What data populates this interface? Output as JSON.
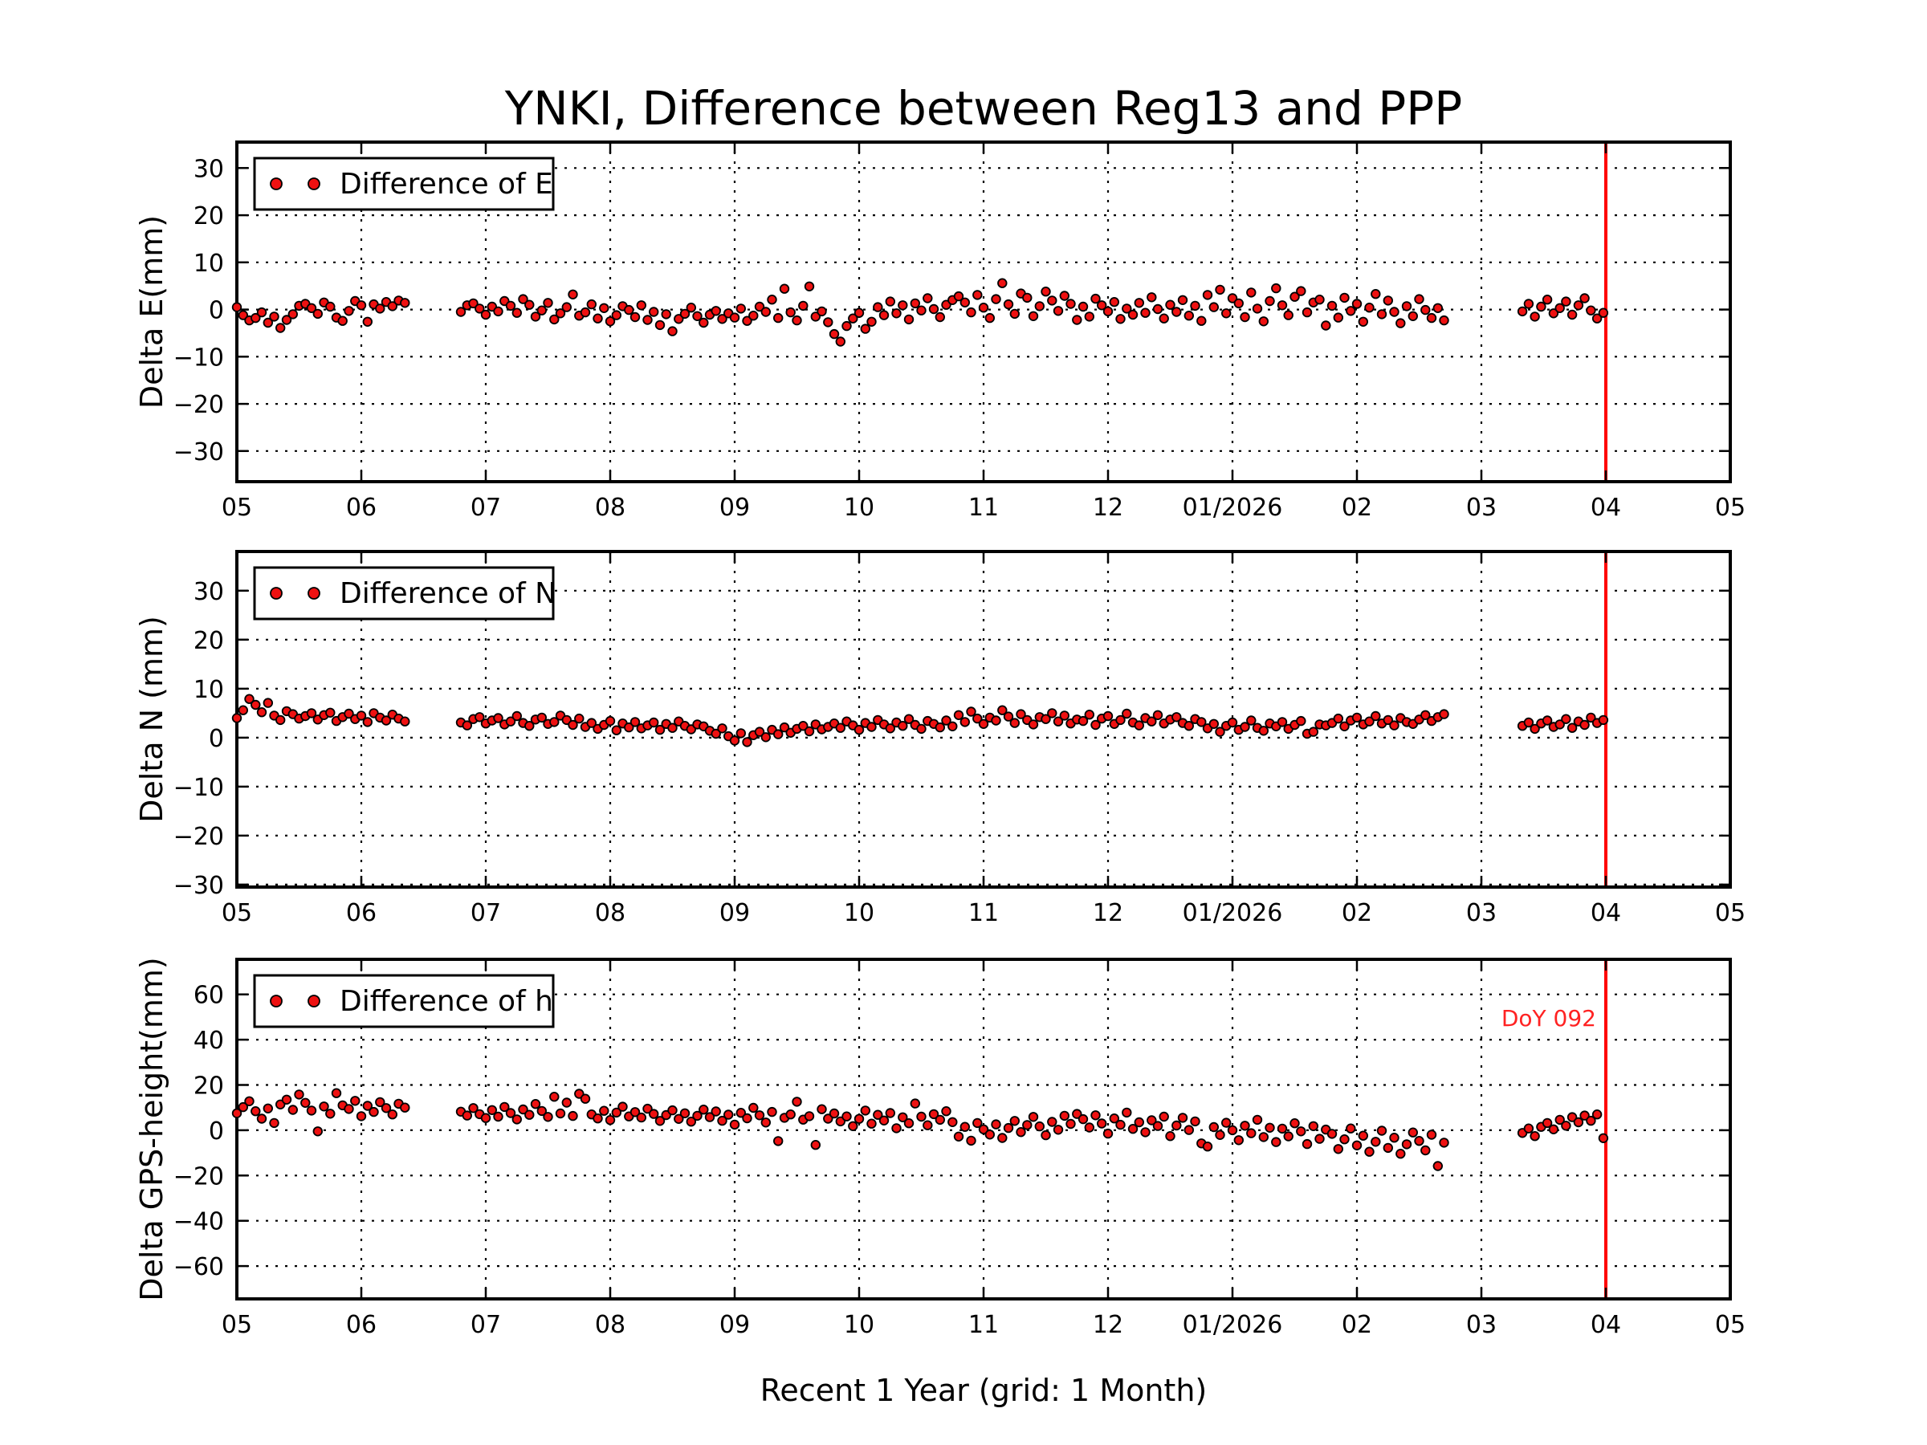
{
  "title": "YNKI, Difference between Reg13 and PPP",
  "xlabel": "Recent 1 Year (grid: 1 Month)",
  "x_tick_labels": [
    "05",
    "06",
    "07",
    "08",
    "09",
    "10",
    "11",
    "12",
    "01/2026",
    "02",
    "03",
    "04",
    "05"
  ],
  "colors": {
    "background": "#ffffff",
    "text": "#000000",
    "grid": "#000000",
    "marker_fill": "#ee1111",
    "marker_edge": "#000000"
  },
  "vline": {
    "x_month": 16,
    "color": "#ff0000"
  },
  "annotation": {
    "text": "DoY 092",
    "subplot": "h",
    "x_month": 16,
    "y_value": 46,
    "color": "#ff2222"
  },
  "chart_data": [
    {
      "type": "scatter",
      "id": "e",
      "ylabel": "Delta E(mm)",
      "legend": "Difference of E",
      "legend_position": "upper left",
      "grid": true,
      "xlim": [
        5,
        17
      ],
      "x_unit": "calendar month, 5 = 2025-05 ... 17 = 2026-05",
      "ylim": [
        -36.5,
        35.5
      ],
      "yticks": [
        30,
        20,
        10,
        0,
        -10,
        -20,
        -30
      ],
      "yticklabels": [
        "30",
        "20",
        "10",
        "0",
        "−10",
        "−20",
        "−30"
      ],
      "segments": [
        {
          "x0": 5.0,
          "dx": 0.05,
          "y": [
            0.5,
            -1.2,
            -2.3,
            -1.8,
            -0.6,
            -2.8,
            -1.5,
            -3.9,
            -2.2,
            -1.0,
            0.8,
            1.2,
            0.3,
            -0.9,
            1.5,
            0.6,
            -1.7,
            -2.4,
            -0.3,
            1.8,
            0.9,
            -2.6,
            1.1,
            0.2,
            1.6,
            0.7,
            1.9,
            1.4
          ]
        },
        {
          "x0": 6.8,
          "dx": 0.05,
          "y": [
            -0.5,
            0.9,
            1.3,
            0.2,
            -1.1,
            0.6,
            -0.4,
            1.8,
            0.8,
            -0.7,
            2.2,
            1.0,
            -1.5,
            -0.2,
            1.4,
            -2.1,
            -0.8,
            0.5,
            3.2,
            -1.3,
            -0.6,
            1.1,
            -1.9,
            0.3,
            -2.5,
            -1.2,
            0.7,
            -0.1,
            -1.6,
            0.9,
            -2.2,
            -0.5,
            -3.3,
            -1.0,
            -4.6,
            -2.0,
            -0.9,
            0.4,
            -1.4,
            -2.8,
            -1.1,
            -0.3,
            -2.0,
            -0.8,
            -1.7,
            0.2,
            -2.4,
            -1.3,
            0.6,
            -0.5,
            2.1,
            -1.8,
            4.4,
            -0.6,
            -2.3,
            0.8,
            4.9,
            -1.5,
            -0.4,
            -2.7,
            -5.2,
            -6.8,
            -3.5,
            -1.9,
            -0.7,
            -4.1,
            -2.6,
            0.5,
            -1.2,
            1.7,
            -0.8,
            0.9,
            -2.1,
            1.3,
            -0.2,
            2.4,
            0.1,
            -1.6,
            1.0,
            2.0,
            2.8,
            1.5,
            -0.6,
            3.1,
            0.4,
            -1.8,
            2.2,
            5.6,
            1.1,
            -0.9,
            3.4,
            2.5,
            -1.4,
            0.7,
            3.8,
            1.9,
            -0.3,
            2.9,
            1.2,
            -2.2,
            0.6,
            -1.5,
            2.3,
            0.9,
            -0.4,
            1.6,
            -2.0,
            0.2,
            -1.1,
            1.4,
            -0.7,
            2.6,
            0.1,
            -1.9,
            1.0,
            -0.5,
            2.0,
            -1.3,
            0.8,
            -2.4,
            3.1,
            0.5,
            4.2,
            -0.8,
            2.4,
            1.3,
            -1.6,
            3.6,
            0.2,
            -2.5,
            1.8,
            4.5,
            0.9,
            -1.2,
            2.7,
            3.9,
            -0.6,
            1.5,
            2.1,
            -3.4,
            0.8,
            -1.7,
            2.5,
            -0.3,
            1.2,
            -2.6,
            0.4,
            3.3,
            -1.0,
            1.9,
            -0.5,
            -2.9,
            0.7,
            -1.4,
            2.2,
            -0.1,
            -1.8,
            0.3,
            -2.3
          ]
        },
        {
          "x0": 15.33,
          "dx": 0.05,
          "y": [
            -0.4,
            1.2,
            -1.5,
            0.6,
            2.1,
            -0.8,
            0.3,
            1.7,
            -1.1,
            0.9,
            2.4,
            -0.2,
            -1.9,
            -0.7
          ]
        }
      ]
    },
    {
      "type": "scatter",
      "id": "n",
      "ylabel": "Delta N (mm)",
      "legend": "Difference of N",
      "legend_position": "upper left",
      "grid": true,
      "xlim": [
        5,
        17
      ],
      "x_unit": "calendar month, 5 = 2025-05 ... 17 = 2026-05",
      "ylim": [
        -30.5,
        38.0
      ],
      "yticks": [
        30,
        20,
        10,
        0,
        -10,
        -20,
        -30
      ],
      "yticklabels": [
        "30",
        "20",
        "10",
        "0",
        "−10",
        "−20",
        "−30"
      ],
      "segments": [
        {
          "x0": 5.0,
          "dx": 0.05,
          "y": [
            4.0,
            5.6,
            7.9,
            6.7,
            5.2,
            7.1,
            4.5,
            3.6,
            5.4,
            4.8,
            3.9,
            4.4,
            5.0,
            3.7,
            4.6,
            5.1,
            3.4,
            4.2,
            4.9,
            3.8,
            4.5,
            3.2,
            5.0,
            4.1,
            3.5,
            4.7,
            3.9,
            3.3
          ]
        },
        {
          "x0": 6.8,
          "dx": 0.05,
          "y": [
            3.1,
            2.5,
            3.8,
            4.2,
            2.9,
            3.5,
            4.0,
            2.7,
            3.3,
            4.4,
            3.0,
            2.4,
            3.7,
            4.1,
            2.8,
            3.2,
            4.5,
            3.6,
            2.6,
            3.9,
            2.2,
            3.0,
            1.8,
            2.6,
            3.4,
            1.5,
            2.9,
            2.1,
            3.2,
            1.9,
            2.5,
            3.1,
            1.6,
            2.8,
            2.0,
            3.3,
            2.4,
            1.7,
            2.7,
            2.3,
            1.4,
            0.8,
            1.9,
            0.3,
            -0.6,
            0.9,
            -0.9,
            0.5,
            1.2,
            0.1,
            1.6,
            0.7,
            2.1,
            1.0,
            1.8,
            2.4,
            1.3,
            2.7,
            1.7,
            2.2,
            2.9,
            2.0,
            3.3,
            2.5,
            1.6,
            3.0,
            2.2,
            3.6,
            2.7,
            1.9,
            3.1,
            2.4,
            3.8,
            2.6,
            1.8,
            3.4,
            2.8,
            2.1,
            3.5,
            2.3,
            4.6,
            3.2,
            5.3,
            3.9,
            2.8,
            4.1,
            3.5,
            5.6,
            4.3,
            3.0,
            4.8,
            3.6,
            2.7,
            4.2,
            3.8,
            5.0,
            3.3,
            4.5,
            2.9,
            3.7,
            3.4,
            4.7,
            2.6,
            3.9,
            4.4,
            2.8,
            3.6,
            4.9,
            3.1,
            2.5,
            4.0,
            3.3,
            4.6,
            2.9,
            3.7,
            4.2,
            3.0,
            2.4,
            3.8,
            3.2,
            1.9,
            2.8,
            1.2,
            2.4,
            3.1,
            1.6,
            2.2,
            3.5,
            2.0,
            1.4,
            2.9,
            2.3,
            3.2,
            1.8,
            2.6,
            3.4,
            0.8,
            1.2,
            2.7,
            2.5,
            3.0,
            3.9,
            2.3,
            3.5,
            4.1,
            2.7,
            3.3,
            4.4,
            2.9,
            3.6,
            2.5,
            4.0,
            3.2,
            2.8,
            3.7,
            4.6,
            3.4,
            4.2,
            4.8
          ]
        },
        {
          "x0": 15.33,
          "dx": 0.05,
          "y": [
            2.4,
            3.1,
            1.8,
            2.9,
            3.5,
            2.2,
            2.7,
            3.8,
            2.0,
            3.3,
            2.6,
            4.1,
            3.0,
            3.6
          ]
        }
      ]
    },
    {
      "type": "scatter",
      "id": "h",
      "ylabel": "Delta GPS-height(mm)",
      "legend": "Difference of h",
      "legend_position": "upper left",
      "grid": true,
      "xlim": [
        5,
        17
      ],
      "x_unit": "calendar month, 5 = 2025-05 ... 17 = 2026-05",
      "ylim": [
        -74.5,
        75.5
      ],
      "yticks": [
        60,
        40,
        20,
        0,
        -20,
        -40,
        -60
      ],
      "yticklabels": [
        "60",
        "40",
        "20",
        "0",
        "−20",
        "−40",
        "−60"
      ],
      "segments": [
        {
          "x0": 5.0,
          "dx": 0.05,
          "y": [
            7.5,
            10.2,
            12.8,
            8.4,
            5.1,
            9.6,
            3.2,
            11.4,
            13.5,
            9.0,
            15.8,
            12.1,
            8.7,
            -0.5,
            10.5,
            7.3,
            16.4,
            11.0,
            9.4,
            13.0,
            6.2,
            10.8,
            8.1,
            12.4,
            9.8,
            7.0,
            11.7,
            10.0
          ]
        },
        {
          "x0": 6.8,
          "dx": 0.05,
          "y": [
            8.2,
            6.5,
            9.8,
            7.1,
            5.4,
            8.9,
            6.0,
            10.3,
            7.6,
            4.8,
            9.2,
            6.8,
            11.6,
            8.5,
            5.9,
            14.8,
            7.4,
            12.2,
            6.3,
            16.1,
            13.9,
            7.0,
            5.2,
            8.6,
            4.5,
            7.8,
            10.4,
            6.1,
            8.0,
            5.6,
            9.5,
            7.2,
            4.1,
            6.7,
            8.8,
            5.0,
            7.5,
            3.8,
            6.4,
            9.1,
            5.8,
            8.3,
            4.2,
            6.9,
            2.5,
            7.7,
            5.3,
            9.9,
            6.6,
            3.4,
            8.1,
            -4.8,
            5.5,
            7.0,
            12.6,
            4.7,
            6.2,
            -6.5,
            9.3,
            5.1,
            7.4,
            3.9,
            6.1,
            1.8,
            5.0,
            8.7,
            2.9,
            6.8,
            4.3,
            7.6,
            0.9,
            5.7,
            3.1,
            11.8,
            6.0,
            2.2,
            7.1,
            4.6,
            8.4,
            3.6,
            -2.8,
            1.5,
            -4.6,
            3.2,
            0.4,
            -1.9,
            2.6,
            -3.4,
            1.0,
            4.1,
            -0.8,
            2.3,
            5.9,
            1.7,
            -2.2,
            3.7,
            0.2,
            6.4,
            2.8,
            7.2,
            4.9,
            1.2,
            6.6,
            3.0,
            -1.5,
            5.2,
            2.4,
            7.8,
            0.6,
            3.5,
            -0.9,
            4.4,
            1.9,
            6.0,
            -2.6,
            2.1,
            5.5,
            0.1,
            3.9,
            -5.8,
            -7.2,
            1.4,
            -2.1,
            3.3,
            0.0,
            -4.4,
            2.0,
            -1.3,
            4.6,
            -3.0,
            1.1,
            -5.2,
            0.7,
            -2.7,
            3.1,
            -0.5,
            -6.1,
            1.8,
            -3.8,
            0.3,
            -1.6,
            -8.3,
            -4.0,
            0.8,
            -6.7,
            -2.4,
            -9.5,
            -5.1,
            -0.2,
            -7.8,
            -3.3,
            -10.4,
            -6.2,
            -1.0,
            -4.7,
            -8.9,
            -2.0,
            -15.8,
            -5.5
          ]
        },
        {
          "x0": 15.33,
          "dx": 0.05,
          "y": [
            -1.2,
            0.8,
            -2.6,
            1.5,
            3.2,
            0.4,
            4.6,
            2.0,
            5.8,
            3.5,
            6.5,
            4.2,
            7.0,
            -3.5
          ]
        }
      ]
    }
  ]
}
